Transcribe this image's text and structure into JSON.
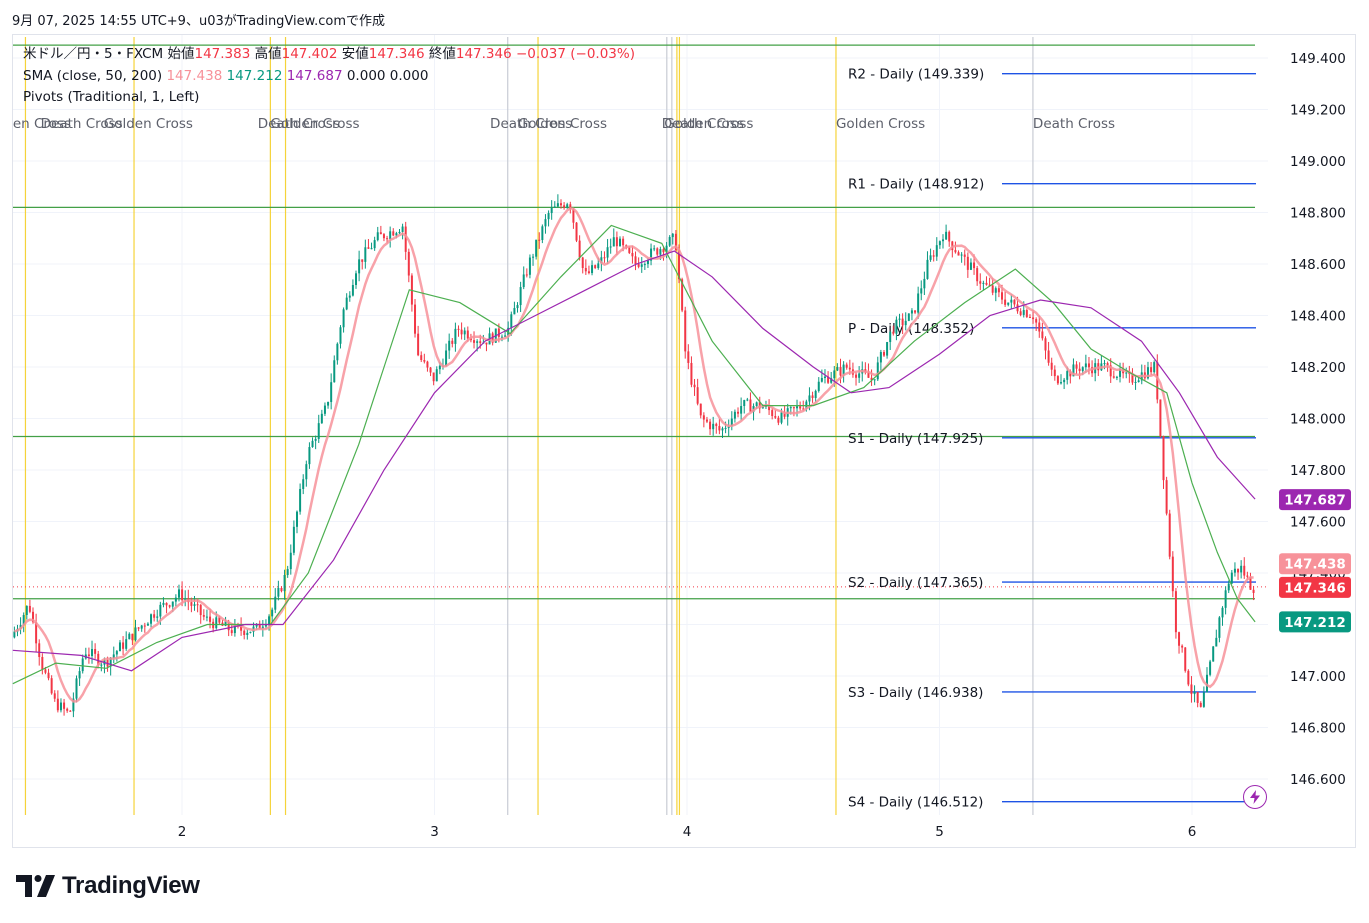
{
  "header": {
    "timestamp_text": "9月 07, 2025 14:55 UTC+9、u03がTradingView.comで作成"
  },
  "legend": {
    "symbol": "米ドル／円・5・FXCM",
    "open_label": "始値",
    "open": "147.383",
    "high_label": "高値",
    "high": "147.402",
    "low_label": "安値",
    "low": "147.346",
    "close_label": "終値",
    "close": "147.346",
    "change": "−0.037 (−0.03%)",
    "sma_label": "SMA (close, 50, 200)",
    "sma_v1": "147.438",
    "sma_v2": "147.212",
    "sma_v3": "147.687",
    "sma_v4": "0.000",
    "sma_v5": "0.000",
    "pivots_label": "Pivots (Traditional, 1, Left)"
  },
  "branding": {
    "logo_text": "TradingView",
    "logo_mark": "TV"
  },
  "colors": {
    "up": "#089981",
    "down": "#f23645",
    "sma_fast": "#f7929a",
    "sma_mid": "#4caf50",
    "sma_slow": "#9c27b0",
    "pivot": "#1e53e5",
    "hline": "#43a047",
    "cross": "#f5d33a",
    "grid": "#f0f3fa"
  },
  "chart_data": {
    "type": "candlestick",
    "symbol": "USDJPY 5m FXCM",
    "ylim": [
      146.5,
      149.55
    ],
    "y_ticks": [
      "149.400",
      "149.200",
      "149.000",
      "148.800",
      "148.600",
      "148.400",
      "148.200",
      "148.000",
      "147.800",
      "147.600",
      "147.400",
      "147.200",
      "147.000",
      "146.800",
      "146.600"
    ],
    "x_ticks": [
      {
        "label": "2",
        "day": 2
      },
      {
        "label": "3",
        "day": 3
      },
      {
        "label": "4",
        "day": 4
      },
      {
        "label": "5",
        "day": 5
      },
      {
        "label": "6",
        "day": 6
      }
    ],
    "x_range_days": [
      1.33,
      6.25
    ],
    "price_path": [
      [
        1.33,
        147.15
      ],
      [
        1.4,
        147.28
      ],
      [
        1.45,
        147.05
      ],
      [
        1.5,
        146.9
      ],
      [
        1.56,
        146.85
      ],
      [
        1.62,
        147.1
      ],
      [
        1.7,
        147.05
      ],
      [
        1.8,
        147.15
      ],
      [
        1.9,
        147.25
      ],
      [
        2.0,
        147.32
      ],
      [
        2.1,
        147.22
      ],
      [
        2.2,
        147.18
      ],
      [
        2.3,
        147.18
      ],
      [
        2.36,
        147.25
      ],
      [
        2.42,
        147.4
      ],
      [
        2.5,
        147.85
      ],
      [
        2.58,
        148.05
      ],
      [
        2.64,
        148.4
      ],
      [
        2.7,
        148.6
      ],
      [
        2.78,
        148.7
      ],
      [
        2.88,
        148.75
      ],
      [
        2.94,
        148.25
      ],
      [
        3.0,
        148.15
      ],
      [
        3.1,
        148.35
      ],
      [
        3.2,
        148.3
      ],
      [
        3.3,
        148.35
      ],
      [
        3.38,
        148.6
      ],
      [
        3.46,
        148.8
      ],
      [
        3.54,
        148.85
      ],
      [
        3.6,
        148.55
      ],
      [
        3.66,
        148.6
      ],
      [
        3.72,
        148.7
      ],
      [
        3.8,
        148.6
      ],
      [
        3.88,
        148.65
      ],
      [
        3.96,
        148.7
      ],
      [
        4.0,
        148.25
      ],
      [
        4.06,
        148.0
      ],
      [
        4.14,
        147.95
      ],
      [
        4.22,
        148.05
      ],
      [
        4.3,
        148.05
      ],
      [
        4.38,
        148.0
      ],
      [
        4.46,
        148.05
      ],
      [
        4.54,
        148.15
      ],
      [
        4.64,
        148.2
      ],
      [
        4.74,
        148.15
      ],
      [
        4.82,
        148.35
      ],
      [
        4.9,
        148.4
      ],
      [
        4.96,
        148.6
      ],
      [
        5.02,
        148.72
      ],
      [
        5.1,
        148.62
      ],
      [
        5.18,
        148.52
      ],
      [
        5.28,
        148.45
      ],
      [
        5.38,
        148.4
      ],
      [
        5.46,
        148.15
      ],
      [
        5.56,
        148.2
      ],
      [
        5.66,
        148.2
      ],
      [
        5.76,
        148.15
      ],
      [
        5.86,
        148.2
      ],
      [
        5.9,
        147.7
      ],
      [
        5.94,
        147.2
      ],
      [
        6.0,
        146.95
      ],
      [
        6.04,
        146.86
      ],
      [
        6.08,
        147.05
      ],
      [
        6.12,
        147.25
      ],
      [
        6.16,
        147.4
      ],
      [
        6.2,
        147.42
      ],
      [
        6.24,
        147.35
      ],
      [
        6.25,
        147.346
      ]
    ],
    "series": [
      {
        "name": "SMA 50 (147.438)"
      },
      {
        "name": "SMA 100 (147.212)"
      },
      {
        "name": "SMA 200 (147.687)"
      }
    ],
    "mid_sma_path": [
      [
        1.33,
        146.97
      ],
      [
        1.5,
        147.05
      ],
      [
        1.7,
        147.03
      ],
      [
        1.9,
        147.13
      ],
      [
        2.1,
        147.2
      ],
      [
        2.35,
        147.2
      ],
      [
        2.5,
        147.4
      ],
      [
        2.7,
        147.9
      ],
      [
        2.9,
        148.5
      ],
      [
        3.1,
        148.45
      ],
      [
        3.3,
        148.33
      ],
      [
        3.5,
        148.55
      ],
      [
        3.7,
        148.75
      ],
      [
        3.9,
        148.68
      ],
      [
        4.1,
        148.3
      ],
      [
        4.3,
        148.05
      ],
      [
        4.5,
        148.05
      ],
      [
        4.7,
        148.12
      ],
      [
        4.9,
        148.3
      ],
      [
        5.1,
        148.45
      ],
      [
        5.3,
        148.58
      ],
      [
        5.45,
        148.45
      ],
      [
        5.6,
        148.27
      ],
      [
        5.75,
        148.18
      ],
      [
        5.9,
        148.1
      ],
      [
        6.0,
        147.75
      ],
      [
        6.1,
        147.48
      ],
      [
        6.18,
        147.3
      ],
      [
        6.25,
        147.21
      ]
    ],
    "slow_sma_path": [
      [
        1.33,
        147.1
      ],
      [
        1.6,
        147.08
      ],
      [
        1.8,
        147.02
      ],
      [
        2.0,
        147.15
      ],
      [
        2.25,
        147.2
      ],
      [
        2.4,
        147.2
      ],
      [
        2.6,
        147.45
      ],
      [
        2.8,
        147.8
      ],
      [
        3.0,
        148.1
      ],
      [
        3.2,
        148.3
      ],
      [
        3.4,
        148.4
      ],
      [
        3.6,
        148.5
      ],
      [
        3.8,
        148.6
      ],
      [
        3.95,
        148.65
      ],
      [
        4.1,
        148.55
      ],
      [
        4.3,
        148.35
      ],
      [
        4.5,
        148.2
      ],
      [
        4.65,
        148.1
      ],
      [
        4.8,
        148.12
      ],
      [
        5.0,
        148.25
      ],
      [
        5.2,
        148.4
      ],
      [
        5.4,
        148.46
      ],
      [
        5.6,
        148.43
      ],
      [
        5.8,
        148.3
      ],
      [
        5.95,
        148.1
      ],
      [
        6.1,
        147.85
      ],
      [
        6.25,
        147.687
      ]
    ],
    "horizontal_lines": [
      149.45,
      148.82,
      147.93,
      147.3
    ],
    "current_price_line": 147.346,
    "pivots": [
      {
        "label": "R2 - Daily (149.339)",
        "value": 149.339
      },
      {
        "label": "R1 - Daily (148.912)",
        "value": 148.912
      },
      {
        "label": "P - Daily (148.352)",
        "value": 148.352
      },
      {
        "label": "S1 - Daily (147.925)",
        "value": 147.925
      },
      {
        "label": "S2 - Daily (147.365)",
        "value": 147.365
      },
      {
        "label": "S3 - Daily (146.938)",
        "value": 146.938
      },
      {
        "label": "S4 - Daily (146.512)",
        "value": 146.512
      }
    ],
    "price_tags": [
      {
        "text": "147.687",
        "value": 147.687,
        "bg": "#9c27b0",
        "fg": "#ffffff"
      },
      {
        "text": "147.438",
        "value": 147.438,
        "bg": "#f7929a",
        "fg": "#ffffff"
      },
      {
        "text": "147.346",
        "value": 147.346,
        "bg": "#f23645",
        "fg": "#ffffff"
      },
      {
        "text": "147.212",
        "value": 147.212,
        "bg": "#089981",
        "fg": "#ffffff"
      }
    ],
    "cross_markers": [
      {
        "day": 1.38,
        "color": "#f5d33a"
      },
      {
        "day": 1.81,
        "color": "#f5d33a"
      },
      {
        "day": 2.35,
        "color": "#f5d33a"
      },
      {
        "day": 2.41,
        "color": "#f5d33a"
      },
      {
        "day": 3.29,
        "color": "#c8ccd4"
      },
      {
        "day": 3.41,
        "color": "#f5d33a"
      },
      {
        "day": 3.92,
        "color": "#c8ccd4"
      },
      {
        "day": 3.94,
        "color": "#c8ccd4"
      },
      {
        "day": 3.96,
        "color": "#f5d33a"
      },
      {
        "day": 3.97,
        "color": "#f5d33a"
      },
      {
        "day": 4.59,
        "color": "#f5d33a"
      },
      {
        "day": 5.37,
        "color": "#c8ccd4"
      }
    ],
    "cross_labels": [
      {
        "text": "en Cross",
        "day": 1.33
      },
      {
        "text": "Death Cross",
        "day": 1.44
      },
      {
        "text": "Golden Cross",
        "day": 1.69
      },
      {
        "text": "Death Cross",
        "day": 2.3
      },
      {
        "text": "Golden Cross",
        "day": 2.35
      },
      {
        "text": "Death Cross",
        "day": 3.22
      },
      {
        "text": "Golden Cross",
        "day": 3.33
      },
      {
        "text": "Death Cross",
        "day": 3.9
      },
      {
        "text": "Golden Cross",
        "day": 3.91
      },
      {
        "text": "Golden Cross",
        "day": 4.59
      },
      {
        "text": "Death Cross",
        "day": 5.37
      }
    ]
  }
}
